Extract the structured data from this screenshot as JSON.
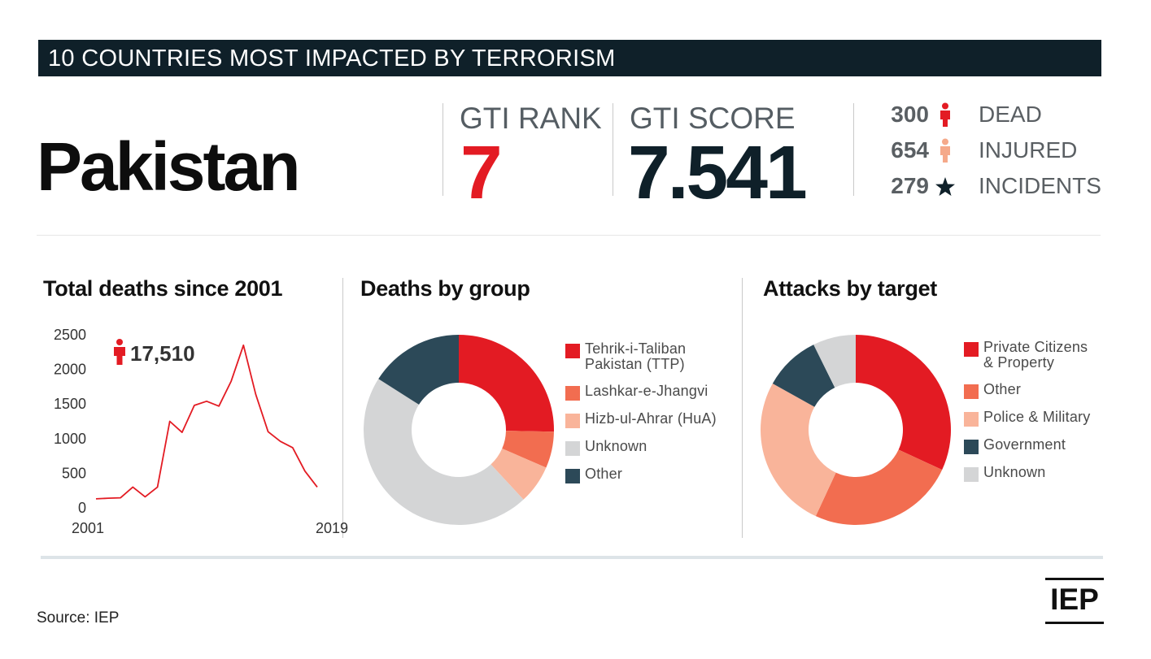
{
  "banner": {
    "title": "10 COUNTRIES MOST IMPACTED BY TERRORISM"
  },
  "country": "Pakistan",
  "gti": {
    "rank_label": "GTI RANK",
    "rank_value": "7",
    "score_label": "GTI SCORE",
    "score_value": "7.541"
  },
  "stats": [
    {
      "value": "300",
      "label": "DEAD",
      "icon": "person-icon",
      "color": "#e31b23"
    },
    {
      "value": "654",
      "label": "INJURED",
      "icon": "person-icon",
      "color": "#f5a98a"
    },
    {
      "value": "279",
      "label": "INCIDENTS",
      "icon": "star-icon",
      "color": "#0f2029"
    }
  ],
  "colors": {
    "banner": "#0f2029",
    "accent_red": "#e31b23",
    "navy": "#0f2029"
  },
  "panels": {
    "deaths_title": "Total deaths since 2001",
    "group_title": "Deaths by group",
    "target_title": "Attacks by target"
  },
  "deaths_total": "17,510",
  "chart_data": [
    {
      "type": "line",
      "title": "Total deaths since 2001",
      "x": [
        2001,
        2002,
        2003,
        2004,
        2005,
        2006,
        2007,
        2008,
        2009,
        2010,
        2011,
        2012,
        2013,
        2014,
        2015,
        2016,
        2017,
        2018,
        2019
      ],
      "x_tick_labels": [
        "2001",
        "2019"
      ],
      "series": [
        {
          "values": [
            130,
            140,
            145,
            300,
            160,
            300,
            1250,
            1090,
            1480,
            1540,
            1470,
            1830,
            2350,
            1640,
            1100,
            960,
            870,
            530,
            300
          ],
          "color": "#e31b23"
        }
      ],
      "y_ticks": [
        "0",
        "500",
        "1000",
        "1500",
        "2000",
        "2500"
      ],
      "ylim": [
        0,
        2500
      ],
      "annotation": "17,510",
      "grid": false
    },
    {
      "type": "pie",
      "title": "Deaths by group",
      "donut": true,
      "slices": [
        {
          "label": "Tehrik-i-Taliban Pakistan (TTP)",
          "value": 25.3,
          "color": "#e31b23"
        },
        {
          "label": "Lashkar-e-Jhangvi",
          "value": 6.2,
          "color": "#f26d50"
        },
        {
          "label": "Hizb-ul-Ahrar (HuA)",
          "value": 6.6,
          "color": "#f9b49a"
        },
        {
          "label": "Unknown",
          "value": 45.9,
          "color": "#d4d5d6"
        },
        {
          "label": "Other",
          "value": 16.0,
          "color": "#2c4958"
        }
      ],
      "legend_lines": [
        [
          "Tehrik-i-Taliban",
          "Pakistan (TTP)"
        ],
        [
          "Lashkar-e-Jhangvi"
        ],
        [
          "Hizb-ul-Ahrar (HuA)"
        ],
        [
          "Unknown"
        ],
        [
          "Other"
        ]
      ],
      "legend_position": "right"
    },
    {
      "type": "pie",
      "title": "Attacks by target",
      "donut": true,
      "slices": [
        {
          "label": "Private Citizens & Property",
          "value": 31.9,
          "color": "#e31b23"
        },
        {
          "label": "Other",
          "value": 25.0,
          "color": "#f26d50"
        },
        {
          "label": "Police & Military",
          "value": 26.2,
          "color": "#f9b49a"
        },
        {
          "label": "Government",
          "value": 9.6,
          "color": "#2c4958"
        },
        {
          "label": "Unknown",
          "value": 7.3,
          "color": "#d4d5d6"
        }
      ],
      "legend_lines": [
        [
          "Private Citizens",
          "& Property"
        ],
        [
          "Other"
        ],
        [
          "Police & Military"
        ],
        [
          "Government"
        ],
        [
          "Unknown"
        ]
      ],
      "legend_position": "right"
    }
  ],
  "footer": {
    "source": "Source: IEP",
    "logo_text": "IEP"
  }
}
